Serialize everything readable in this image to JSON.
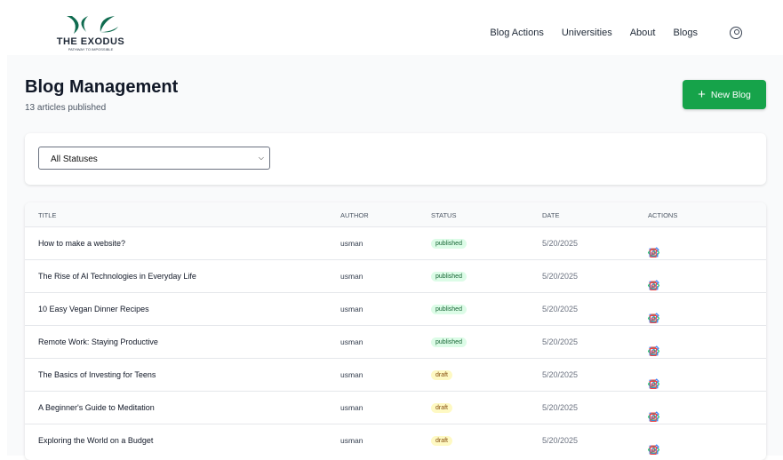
{
  "brand": {
    "name": "THE EXODUS",
    "tagline": "PATHWAY TO IMPOSSIBLE",
    "color": "#0f6b4f"
  },
  "nav": {
    "links": [
      "Blog Actions",
      "Universities",
      "About",
      "Blogs"
    ],
    "user_icon": "user-circle-icon"
  },
  "page": {
    "title": "Blog Management",
    "subtitle": "13 articles published",
    "new_button": "New Blog"
  },
  "filter": {
    "selected": "All Statuses"
  },
  "table": {
    "headers": [
      "TITLE",
      "AUTHOR",
      "STATUS",
      "DATE",
      "ACTIONS"
    ],
    "rows": [
      {
        "title": "How to make a website?",
        "author": "usman",
        "status": "published",
        "date": "5/20/2025"
      },
      {
        "title": "The Rise of AI Technologies in Everyday Life",
        "author": "usman",
        "status": "published",
        "date": "5/20/2025"
      },
      {
        "title": "10 Easy Vegan Dinner Recipes",
        "author": "usman",
        "status": "published",
        "date": "5/20/2025"
      },
      {
        "title": "Remote Work: Staying Productive",
        "author": "usman",
        "status": "published",
        "date": "5/20/2025"
      },
      {
        "title": "The Basics of Investing for Teens",
        "author": "usman",
        "status": "draft",
        "date": "5/20/2025"
      },
      {
        "title": "A Beginner's Guide to Meditation",
        "author": "usman",
        "status": "draft",
        "date": "5/20/2025"
      },
      {
        "title": "Exploring the World on a Budget",
        "author": "usman",
        "status": "draft",
        "date": "5/20/2025"
      }
    ]
  },
  "colors": {
    "accent": "#16a34a",
    "view": "#22c55e",
    "edit": "#3b82f6",
    "delete": "#ef4444"
  }
}
